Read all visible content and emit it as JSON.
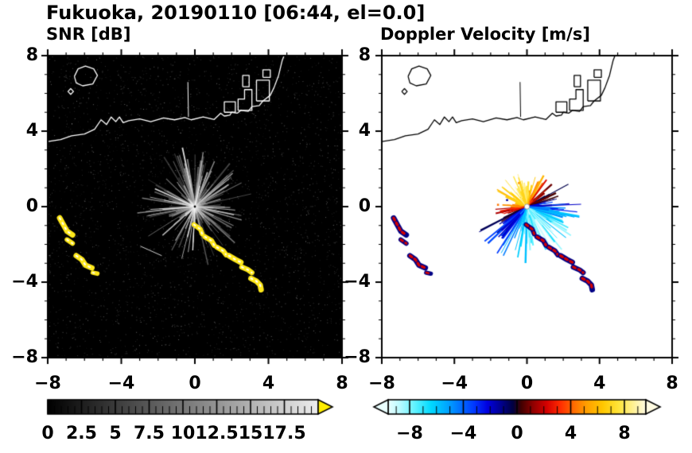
{
  "title": "Fukuoka, 20190110 [06:44, el=0.0]",
  "panels": [
    {
      "id": "snr",
      "label": "SNR [dB]",
      "bg": "#000000",
      "coast_color": "#ffffff",
      "x_range": [
        -8,
        8
      ],
      "y_range": [
        -8,
        8
      ],
      "x_ticks": [
        -8,
        -4,
        0,
        4,
        8
      ],
      "y_ticks": [
        -8,
        -4,
        0,
        4,
        8
      ],
      "x_tick_labels": [
        "−8",
        "−4",
        "0",
        "4",
        "8"
      ],
      "y_tick_labels": [
        "−8",
        "−4",
        "0",
        "4",
        "8"
      ],
      "minor_tick_step": 1
    },
    {
      "id": "vel",
      "label": "Doppler Velocity [m/s]",
      "bg": "#ffffff",
      "coast_color": "#000000",
      "x_range": [
        -8,
        8
      ],
      "y_range": [
        -8,
        8
      ],
      "x_ticks": [
        -8,
        -4,
        0,
        4,
        8
      ],
      "y_ticks": [
        -8,
        -4,
        0,
        4,
        8
      ],
      "x_tick_labels": [
        "−8",
        "−4",
        "0",
        "4",
        "8"
      ],
      "y_tick_labels": [
        "−8",
        "−4",
        "0",
        "4",
        "8"
      ],
      "minor_tick_step": 1
    }
  ],
  "colorbars": [
    {
      "panel": "snr",
      "range": [
        0,
        20
      ],
      "tick_values": [
        0,
        2.5,
        5,
        7.5,
        10,
        12.5,
        15,
        17.5
      ],
      "tick_labels": [
        "0",
        "2.5",
        "5",
        "7.5",
        "10",
        "12.5",
        "15",
        "17.5"
      ],
      "minor_step": 0.5,
      "type": "grayscale",
      "stops": [
        [
          0,
          "#000000"
        ],
        [
          20,
          "#ededed"
        ]
      ],
      "arrow_right_color": "#ffee00",
      "arrows": "right"
    },
    {
      "panel": "vel",
      "range": [
        -9.6,
        9.6
      ],
      "tick_values": [
        -8,
        -4,
        0,
        4,
        8
      ],
      "tick_labels": [
        "−8",
        "−4",
        "0",
        "4",
        "8"
      ],
      "minor_step": 1,
      "type": "diverging",
      "stops": [
        [
          -9.6,
          "#eaffff"
        ],
        [
          -8.8,
          "#bffbff"
        ],
        [
          -7.6,
          "#5ff2ff"
        ],
        [
          -6.4,
          "#00d9ff"
        ],
        [
          -5.2,
          "#00a6ff"
        ],
        [
          -4.2,
          "#0070ff"
        ],
        [
          -3.2,
          "#0038ff"
        ],
        [
          -2.2,
          "#0000e0"
        ],
        [
          -1.2,
          "#000090"
        ],
        [
          -0.3,
          "#000040"
        ],
        [
          0.3,
          "#400000"
        ],
        [
          1.2,
          "#900000"
        ],
        [
          2.2,
          "#d40000"
        ],
        [
          3.2,
          "#ff2a00"
        ],
        [
          4.2,
          "#ff6a00"
        ],
        [
          5.2,
          "#ffa000"
        ],
        [
          6.4,
          "#ffc800"
        ],
        [
          7.6,
          "#ffe53c"
        ],
        [
          8.8,
          "#fff2a0"
        ],
        [
          9.6,
          "#fffbe2"
        ]
      ],
      "arrows": "both"
    }
  ],
  "radar": {
    "center_km": [
      0,
      0
    ],
    "wind_toward_deg": 115,
    "vel_max_ms": 8.2,
    "snr_fan_radius_km": 3.2,
    "vel_fan_radius_km": 2.6
  },
  "colors": {
    "snr_patch": "#ffe81a",
    "snr_patch_core": "#ffffff",
    "vel_patch_edge": "#000085",
    "vel_patch_core": "#d40000",
    "frame": "#000000"
  },
  "geometry": {
    "coastline": [
      [
        -8,
        3.45
      ],
      [
        -7.3,
        3.55
      ],
      [
        -6.7,
        3.75
      ],
      [
        -6.0,
        3.85
      ],
      [
        -5.45,
        4.1
      ],
      [
        -5.1,
        4.6
      ],
      [
        -4.8,
        4.35
      ],
      [
        -4.55,
        4.75
      ],
      [
        -4.3,
        4.5
      ],
      [
        -4.1,
        4.75
      ],
      [
        -3.9,
        4.45
      ],
      [
        -3.6,
        4.55
      ],
      [
        -3.0,
        4.65
      ],
      [
        -2.4,
        4.5
      ],
      [
        -1.7,
        4.7
      ],
      [
        -1.1,
        4.6
      ],
      [
        -0.55,
        4.72
      ],
      [
        -0.2,
        4.6
      ],
      [
        0.45,
        4.75
      ],
      [
        1.05,
        4.62
      ],
      [
        1.4,
        4.95
      ],
      [
        1.6,
        4.8
      ],
      [
        1.9,
        4.85
      ],
      [
        2.0,
        5.0
      ],
      [
        2.3,
        4.95
      ],
      [
        2.5,
        5.1
      ],
      [
        2.9,
        5.05
      ],
      [
        3.1,
        5.3
      ],
      [
        3.5,
        5.35
      ],
      [
        3.7,
        5.6
      ],
      [
        4.1,
        5.9
      ],
      [
        4.3,
        6.3
      ],
      [
        4.55,
        6.95
      ],
      [
        4.75,
        7.75
      ],
      [
        4.85,
        8.0
      ]
    ],
    "breakwater": [
      [
        -0.35,
        4.75
      ],
      [
        -0.38,
        6.6
      ]
    ],
    "island": [
      [
        -6.55,
        6.9
      ],
      [
        -6.35,
        7.3
      ],
      [
        -5.95,
        7.45
      ],
      [
        -5.5,
        7.3
      ],
      [
        -5.3,
        6.95
      ],
      [
        -5.55,
        6.5
      ],
      [
        -6.1,
        6.4
      ],
      [
        -6.45,
        6.55
      ],
      [
        -6.55,
        6.9
      ]
    ],
    "islet": [
      [
        -6.9,
        6.1
      ],
      [
        -6.75,
        6.25
      ],
      [
        -6.6,
        6.1
      ],
      [
        -6.75,
        5.95
      ],
      [
        -6.9,
        6.1
      ]
    ],
    "port_blocks": [
      [
        [
          1.6,
          5.0
        ],
        [
          2.2,
          5.0
        ],
        [
          2.2,
          5.55
        ],
        [
          1.6,
          5.55
        ],
        [
          1.6,
          5.0
        ]
      ],
      [
        [
          2.35,
          5.1
        ],
        [
          3.1,
          5.1
        ],
        [
          3.1,
          6.2
        ],
        [
          2.7,
          6.2
        ],
        [
          2.7,
          5.7
        ],
        [
          2.35,
          5.7
        ],
        [
          2.35,
          5.1
        ]
      ],
      [
        [
          2.6,
          6.35
        ],
        [
          2.95,
          6.35
        ],
        [
          2.95,
          6.95
        ],
        [
          2.6,
          6.95
        ],
        [
          2.6,
          6.35
        ]
      ],
      [
        [
          3.35,
          5.6
        ],
        [
          4.05,
          5.6
        ],
        [
          4.05,
          6.7
        ],
        [
          3.35,
          6.7
        ],
        [
          3.35,
          5.6
        ]
      ],
      [
        [
          3.7,
          6.85
        ],
        [
          4.1,
          6.85
        ],
        [
          4.1,
          7.25
        ],
        [
          3.7,
          7.25
        ],
        [
          3.7,
          6.85
        ]
      ]
    ],
    "isolated_streak": [
      [
        -2.95,
        -2.1
      ],
      [
        -1.8,
        -2.6
      ]
    ],
    "vel_dots": [
      [
        -1.65,
        0.15
      ],
      [
        -1.4,
        -0.25
      ],
      [
        -1.15,
        0.4
      ],
      [
        -0.5,
        1.3
      ]
    ],
    "patches": [
      {
        "pts": [
          [
            -7.35,
            -0.6
          ],
          [
            -7.15,
            -0.95
          ],
          [
            -6.95,
            -1.3
          ],
          [
            -6.65,
            -1.5
          ]
        ],
        "w": 0.3
      },
      {
        "pts": [
          [
            -6.95,
            -1.75
          ],
          [
            -6.65,
            -1.95
          ]
        ],
        "w": 0.26
      },
      {
        "pts": [
          [
            -6.45,
            -2.6
          ],
          [
            -6.15,
            -2.8
          ],
          [
            -5.95,
            -3.1
          ],
          [
            -5.6,
            -3.25
          ]
        ],
        "w": 0.3
      },
      {
        "pts": [
          [
            -5.55,
            -3.5
          ],
          [
            -5.3,
            -3.55
          ]
        ],
        "w": 0.24
      },
      {
        "pts": [
          [
            -0.05,
            -0.95
          ],
          [
            0.3,
            -1.2
          ],
          [
            0.4,
            -1.45
          ]
        ],
        "w": 0.26
      },
      {
        "pts": [
          [
            0.55,
            -1.6
          ],
          [
            0.9,
            -1.8
          ],
          [
            1.05,
            -2.05
          ]
        ],
        "w": 0.28
      },
      {
        "pts": [
          [
            1.2,
            -2.15
          ],
          [
            1.55,
            -2.35
          ],
          [
            1.7,
            -2.55
          ]
        ],
        "w": 0.28
      },
      {
        "pts": [
          [
            1.85,
            -2.6
          ],
          [
            2.2,
            -2.8
          ],
          [
            2.5,
            -2.95
          ]
        ],
        "w": 0.3
      },
      {
        "pts": [
          [
            2.55,
            -3.2
          ],
          [
            2.9,
            -3.35
          ],
          [
            3.1,
            -3.5
          ]
        ],
        "w": 0.28
      },
      {
        "pts": [
          [
            3.05,
            -3.8
          ],
          [
            3.35,
            -3.95
          ],
          [
            3.55,
            -4.15
          ],
          [
            3.6,
            -4.4
          ]
        ],
        "w": 0.3
      }
    ]
  },
  "chart_data": [
    {
      "type": "heatmap",
      "subtype": "radar_ppi",
      "title": "SNR [dB]",
      "x_range_km": [
        -8,
        8
      ],
      "y_range_km": [
        -8,
        8
      ],
      "x_ticks": [
        -8,
        -4,
        0,
        4,
        8
      ],
      "y_ticks": [
        -8,
        -4,
        0,
        4,
        8
      ],
      "colorbar_ticks": [
        0,
        2.5,
        5,
        7.5,
        10,
        12.5,
        15,
        17.5
      ],
      "colormap": "black to light gray, yellow overflow arrow",
      "content": "Black background with white Fukuoka coastline; gray radial ground-clutter fan centered on radar at (0,0), radius about 3 km; yellow high-SNR arc echoes near (-7,-1), (-6.9,-1.9), (-6,-3), (-5.4,-3.5) and a chain of arcs from (0,-1) to (3.6,-4.4); sparse gray speckle noise"
    },
    {
      "type": "heatmap",
      "subtype": "radar_ppi",
      "title": "Doppler Velocity [m/s]",
      "x_range_km": [
        -8,
        8
      ],
      "y_range_km": [
        -8,
        8
      ],
      "x_ticks": [
        -8,
        -4,
        0,
        4,
        8
      ],
      "y_ticks": [
        -8,
        -4,
        0,
        4,
        8
      ],
      "colorbar_ticks": [
        -8,
        -4,
        0,
        4,
        8
      ],
      "colormap": "pale cyan - blue - navy / dark red - red - orange - pale yellow diverging",
      "content": "White background with black coastline; radial velocity fan at origin: positive velocities (red/orange, ~+4 to +8 m/s) toward NNW, negative velocities (blue/navy, ~-4 to -8 m/s) toward SSE extending to about (1.5,-2.5); red/navy echo arcs at the same locations as the SNR yellow patches"
    }
  ]
}
